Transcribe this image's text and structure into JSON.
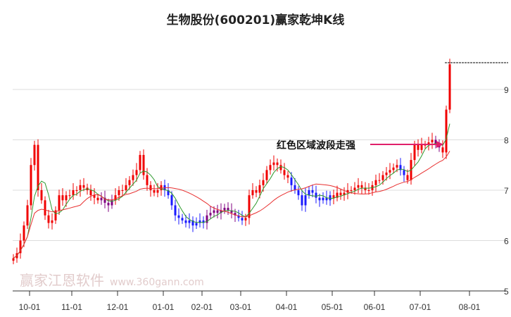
{
  "chart_data": {
    "type": "candlestick",
    "title": "生物股份(600201)赢家乾坤K线",
    "ylim": [
      5,
      9.7
    ],
    "yticks": [
      5,
      6,
      7,
      8,
      9
    ],
    "xticks": [
      {
        "label": "10-01",
        "i": 5
      },
      {
        "label": "11-01",
        "i": 17
      },
      {
        "label": "12-01",
        "i": 30
      },
      {
        "label": "01-01",
        "i": 43
      },
      {
        "label": "02-01",
        "i": 54
      },
      {
        "label": "03-01",
        "i": 65
      },
      {
        "label": "04-01",
        "i": 78
      },
      {
        "label": "05-01",
        "i": 91
      },
      {
        "label": "06-01",
        "i": 103
      },
      {
        "label": "07-01",
        "i": 116
      },
      {
        "label": "08-01",
        "i": 130
      }
    ],
    "closes": [
      5.65,
      5.75,
      6.0,
      6.3,
      6.7,
      7.5,
      7.9,
      7.0,
      6.8,
      6.5,
      6.35,
      6.4,
      6.6,
      6.9,
      6.8,
      6.9,
      6.9,
      7.0,
      7.0,
      7.1,
      7.05,
      7.0,
      6.9,
      6.85,
      6.8,
      6.85,
      6.75,
      6.7,
      6.8,
      6.9,
      7.0,
      7.0,
      7.1,
      7.2,
      7.3,
      7.4,
      7.7,
      7.3,
      7.1,
      7.0,
      6.95,
      7.0,
      7.1,
      7.0,
      6.9,
      6.7,
      6.5,
      6.45,
      6.4,
      6.35,
      6.4,
      6.3,
      6.35,
      6.4,
      6.35,
      6.5,
      6.55,
      6.6,
      6.55,
      6.6,
      6.65,
      6.6,
      6.55,
      6.5,
      6.45,
      6.4,
      6.45,
      6.9,
      7.0,
      6.95,
      7.1,
      7.2,
      7.4,
      7.5,
      7.55,
      7.5,
      7.4,
      7.3,
      7.25,
      7.1,
      7.0,
      6.9,
      6.7,
      6.9,
      7.0,
      6.95,
      6.85,
      6.8,
      6.85,
      6.8,
      6.9,
      6.85,
      6.95,
      6.9,
      6.95,
      7.0,
      7.0,
      7.05,
      7.1,
      7.05,
      7.0,
      7.0,
      7.1,
      7.2,
      7.2,
      7.3,
      7.35,
      7.4,
      7.45,
      7.5,
      7.4,
      7.3,
      7.2,
      7.6,
      7.9,
      7.8,
      7.9,
      7.9,
      7.95,
      8.0,
      7.9,
      7.85,
      7.75,
      8.6,
      9.5
    ],
    "regimes": [
      {
        "from": 0,
        "to": 28,
        "color": "red"
      },
      {
        "from": 25,
        "to": 29,
        "color": "purple"
      },
      {
        "from": 43,
        "to": 55,
        "color": "blue"
      },
      {
        "from": 55,
        "to": 64,
        "color": "purple"
      },
      {
        "from": 64,
        "to": 66,
        "color": "blue"
      },
      {
        "from": 79,
        "to": 91,
        "color": "blue"
      },
      {
        "from": 110,
        "to": 112,
        "color": "blue"
      },
      {
        "from": 120,
        "to": 122,
        "color": "purple"
      }
    ],
    "annotation": "红色区域波段走强",
    "colors": {
      "red": "#f00000",
      "blue": "#1a1aff",
      "purple": "#800080",
      "ma_short": "#2e9a2e",
      "ma_long": "#e83030",
      "annotation_line": "#e0206a"
    }
  },
  "watermark": {
    "name": "赢家江恩软件",
    "url": "www.360gann.com"
  }
}
